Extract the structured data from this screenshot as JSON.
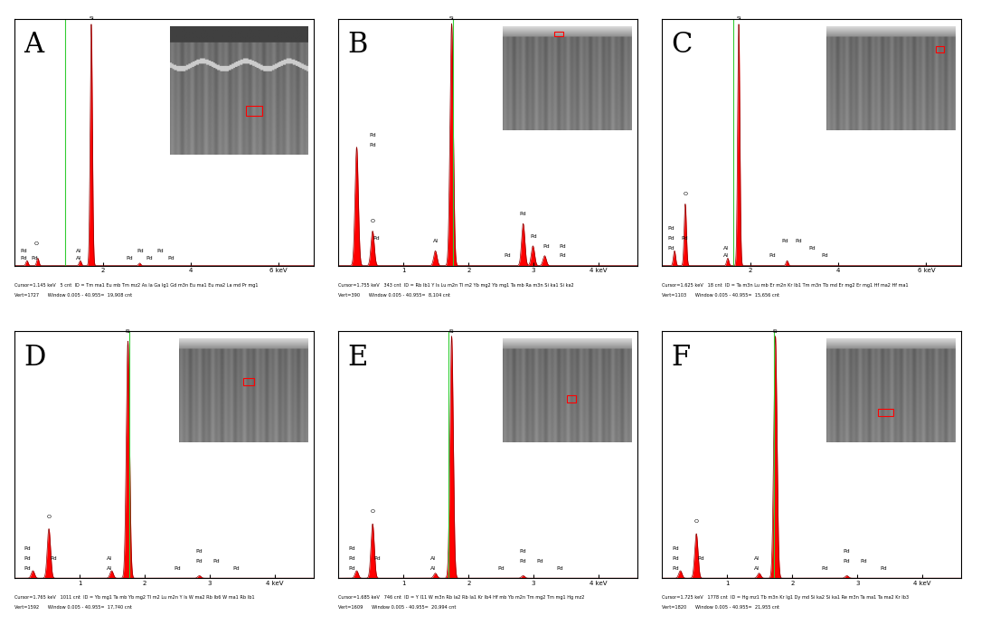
{
  "chart_data": [
    {
      "type": "area",
      "title": "A",
      "color": "#ff0000",
      "tick_labels": "x",
      "xlim": [
        0,
        6.8
      ],
      "xticks": [
        2,
        4,
        {
          "value": 6,
          "label": "6 keV"
        }
      ],
      "ylim": [
        0,
        100
      ],
      "cursor": 1.145,
      "x": [
        0.28,
        0.525,
        1.49,
        1.74,
        2.84
      ],
      "values": [
        2,
        3,
        2,
        98,
        1
      ],
      "peak_labels": [
        {
          "text": "Si",
          "x": 1.74,
          "y": 99
        },
        {
          "text": "O",
          "x": 0.5,
          "y": 8
        },
        {
          "text": "Pd",
          "x": 0.2,
          "y": 5
        },
        {
          "text": "Pd",
          "x": 0.2,
          "y": 2
        },
        {
          "text": "Pd",
          "x": 0.45,
          "y": 2
        },
        {
          "text": "Al",
          "x": 1.45,
          "y": 5
        },
        {
          "text": "Al",
          "x": 1.45,
          "y": 2
        },
        {
          "text": "Pd",
          "x": 2.6,
          "y": 2
        },
        {
          "text": "Pd",
          "x": 2.85,
          "y": 5
        },
        {
          "text": "Pd",
          "x": 3.05,
          "y": 2
        },
        {
          "text": "Pd",
          "x": 3.3,
          "y": 5
        },
        {
          "text": "Pd",
          "x": 3.55,
          "y": 2
        }
      ],
      "footer": [
        "Cursor=1.145 keV   5 cnt  ID = Tm ma1 Eu mb Tm mz2 As la Ga lg1 Gd m3n Eu ma1 Eu ma2 La md Pr mg1",
        "Vert=1727      Window 0.005 - 40.955=  19,908 cnt"
      ]
    },
    {
      "type": "area",
      "title": "B",
      "color": "#ff0000",
      "tick_labels": "x",
      "xlim": [
        0,
        4.6
      ],
      "xticks": [
        1,
        2,
        3,
        {
          "value": 4,
          "label": "4 keV"
        }
      ],
      "ylim": [
        0,
        100
      ],
      "cursor": 1.755,
      "x": [
        0.28,
        0.525,
        1.49,
        1.74,
        2.84,
        2.99,
        3.17
      ],
      "values": [
        48,
        14,
        6,
        98,
        17,
        8,
        4
      ],
      "peak_labels": [
        {
          "text": "Si",
          "x": 1.74,
          "y": 99
        },
        {
          "text": "Pd",
          "x": 0.52,
          "y": 52
        },
        {
          "text": "Pd",
          "x": 0.52,
          "y": 48
        },
        {
          "text": "O",
          "x": 0.52,
          "y": 17
        },
        {
          "text": "Pd",
          "x": 0.58,
          "y": 10
        },
        {
          "text": "Al",
          "x": 1.49,
          "y": 9
        },
        {
          "text": "Pd",
          "x": 2.6,
          "y": 3
        },
        {
          "text": "Pd",
          "x": 2.84,
          "y": 20
        },
        {
          "text": "Pd",
          "x": 3.0,
          "y": 11
        },
        {
          "text": "Pd",
          "x": 3.2,
          "y": 7
        },
        {
          "text": "Pd",
          "x": 3.45,
          "y": 7
        },
        {
          "text": "Pd",
          "x": 3.45,
          "y": 3
        }
      ],
      "footer": [
        "Cursor=1.755 keV   343 cnt  ID = Rb lb1 Y ls Lu m2n Tl m2 Yb mg2 Yb mg1 Ta mb Ra m3n Si ka1 Si ka2",
        "Vert=390      Window 0.005 - 40.955=  8,104 cnt"
      ]
    },
    {
      "type": "area",
      "title": "C",
      "color": "#ff0000",
      "tick_labels": "x",
      "xlim": [
        0,
        6.8
      ],
      "xticks": [
        2,
        4,
        {
          "value": 6,
          "label": "6 keV"
        }
      ],
      "ylim": [
        0,
        100
      ],
      "cursor": 1.625,
      "x": [
        0.28,
        0.525,
        1.49,
        1.74,
        2.84
      ],
      "values": [
        6,
        25,
        3,
        98,
        2
      ],
      "peak_labels": [
        {
          "text": "Si",
          "x": 1.74,
          "y": 99
        },
        {
          "text": "O",
          "x": 0.525,
          "y": 28
        },
        {
          "text": "Pd",
          "x": 0.2,
          "y": 14
        },
        {
          "text": "Pd",
          "x": 0.2,
          "y": 10
        },
        {
          "text": "Pd",
          "x": 0.2,
          "y": 6
        },
        {
          "text": "Pd",
          "x": 0.5,
          "y": 10
        },
        {
          "text": "Al",
          "x": 1.45,
          "y": 6
        },
        {
          "text": "Al",
          "x": 1.45,
          "y": 3
        },
        {
          "text": "Pd",
          "x": 2.5,
          "y": 3
        },
        {
          "text": "Pd",
          "x": 2.8,
          "y": 9
        },
        {
          "text": "Pd",
          "x": 3.1,
          "y": 9
        },
        {
          "text": "Pd",
          "x": 3.4,
          "y": 6
        },
        {
          "text": "Pd",
          "x": 3.7,
          "y": 3
        }
      ],
      "footer": [
        "Cursor=1.625 keV   18 cnt  ID = Ta m3n Lu mb Er m2n Kr lb1 Tm m3n Tb md Er mg2 Er mg1 Hf ma2 Hf ma1",
        "Vert=1103      Window 0.005 - 40.955=  15,656 cnt"
      ]
    },
    {
      "type": "area",
      "title": "D",
      "color": "#ff0000",
      "tick_labels": "x",
      "xlim": [
        0,
        4.6
      ],
      "xticks": [
        1,
        2,
        3,
        {
          "value": 4,
          "label": "4 keV"
        }
      ],
      "ylim": [
        0,
        100
      ],
      "cursor": 1.765,
      "x": [
        0.28,
        0.525,
        1.49,
        1.74,
        2.84
      ],
      "values": [
        3,
        20,
        3,
        96,
        1
      ],
      "peak_labels": [
        {
          "text": "Si",
          "x": 1.74,
          "y": 99
        },
        {
          "text": "O",
          "x": 0.525,
          "y": 24
        },
        {
          "text": "Pd",
          "x": 0.2,
          "y": 11
        },
        {
          "text": "Pd",
          "x": 0.2,
          "y": 7
        },
        {
          "text": "Pd",
          "x": 0.2,
          "y": 3
        },
        {
          "text": "Pd",
          "x": 0.6,
          "y": 7
        },
        {
          "text": "Al",
          "x": 1.45,
          "y": 7
        },
        {
          "text": "Al",
          "x": 1.45,
          "y": 3
        },
        {
          "text": "Pd",
          "x": 2.5,
          "y": 3
        },
        {
          "text": "Pd",
          "x": 2.84,
          "y": 10
        },
        {
          "text": "Pd",
          "x": 2.84,
          "y": 6
        },
        {
          "text": "Pd",
          "x": 3.1,
          "y": 6
        },
        {
          "text": "Pd",
          "x": 3.4,
          "y": 3
        }
      ],
      "footer": [
        "Cursor=1.765 keV   1011 cnt  ID = Yb mg1 Ta mb Yb mg2 Tl m2 Lu m2n Y ls W ma2 Rb lb6 W ma1 Rb lb1",
        "Vert=1592      Window 0.005 - 40.955=  17,740 cnt"
      ]
    },
    {
      "type": "area",
      "title": "E",
      "color": "#ff0000",
      "tick_labels": "x",
      "xlim": [
        0,
        4.6
      ],
      "xticks": [
        1,
        2,
        3,
        {
          "value": 4,
          "label": "4 keV"
        }
      ],
      "ylim": [
        0,
        100
      ],
      "cursor": 1.685,
      "x": [
        0.28,
        0.525,
        1.49,
        1.74,
        2.84
      ],
      "values": [
        3,
        22,
        2,
        98,
        1
      ],
      "peak_labels": [
        {
          "text": "Si",
          "x": 1.74,
          "y": 99
        },
        {
          "text": "O",
          "x": 0.525,
          "y": 26
        },
        {
          "text": "Pd",
          "x": 0.2,
          "y": 11
        },
        {
          "text": "Pd",
          "x": 0.2,
          "y": 7
        },
        {
          "text": "Pd",
          "x": 0.2,
          "y": 3
        },
        {
          "text": "Pd",
          "x": 0.6,
          "y": 7
        },
        {
          "text": "Al",
          "x": 1.45,
          "y": 7
        },
        {
          "text": "Al",
          "x": 1.45,
          "y": 3
        },
        {
          "text": "Pd",
          "x": 2.5,
          "y": 3
        },
        {
          "text": "Pd",
          "x": 2.84,
          "y": 10
        },
        {
          "text": "Pd",
          "x": 2.84,
          "y": 6
        },
        {
          "text": "Pd",
          "x": 3.1,
          "y": 6
        },
        {
          "text": "Pd",
          "x": 3.4,
          "y": 3
        }
      ],
      "footer": [
        "Cursor=1.685 keV   746 cnt  ID = Y l11 W m3n Rb la2 Rb la1 Kr lb4 Hf mb Yb m2n Tm mg2 Tm mg1 Hg mz2",
        "Vert=1609      Window 0.005 - 40.955=  20,994 cnt"
      ]
    },
    {
      "type": "area",
      "title": "F",
      "color": "#ff0000",
      "tick_labels": "x",
      "xlim": [
        0,
        4.6
      ],
      "xticks": [
        1,
        2,
        3,
        {
          "value": 4,
          "label": "4 keV"
        }
      ],
      "ylim": [
        0,
        100
      ],
      "cursor": 1.725,
      "x": [
        0.28,
        0.525,
        1.49,
        1.74,
        2.84
      ],
      "values": [
        3,
        18,
        2,
        98,
        1
      ],
      "peak_labels": [
        {
          "text": "Si",
          "x": 1.74,
          "y": 99
        },
        {
          "text": "O",
          "x": 0.525,
          "y": 22
        },
        {
          "text": "Pd",
          "x": 0.2,
          "y": 11
        },
        {
          "text": "Pd",
          "x": 0.2,
          "y": 7
        },
        {
          "text": "Pd",
          "x": 0.2,
          "y": 3
        },
        {
          "text": "Pd",
          "x": 0.6,
          "y": 7
        },
        {
          "text": "Al",
          "x": 1.45,
          "y": 7
        },
        {
          "text": "Al",
          "x": 1.45,
          "y": 3
        },
        {
          "text": "Pd",
          "x": 2.5,
          "y": 3
        },
        {
          "text": "Pd",
          "x": 2.84,
          "y": 10
        },
        {
          "text": "Pd",
          "x": 2.84,
          "y": 6
        },
        {
          "text": "Pd",
          "x": 3.1,
          "y": 6
        },
        {
          "text": "Pd",
          "x": 3.4,
          "y": 3
        }
      ],
      "footer": [
        "Cursor=1.725 keV   1778 cnt  ID = Hg mz1 Tb m3n Kr lg1 Dy md Si ka2 Si ka1 Re m3n Ta ma1 Ta ma2 Kr lb3",
        "Vert=1820      Window 0.005 - 40.955=  21,955 cnt"
      ]
    }
  ]
}
